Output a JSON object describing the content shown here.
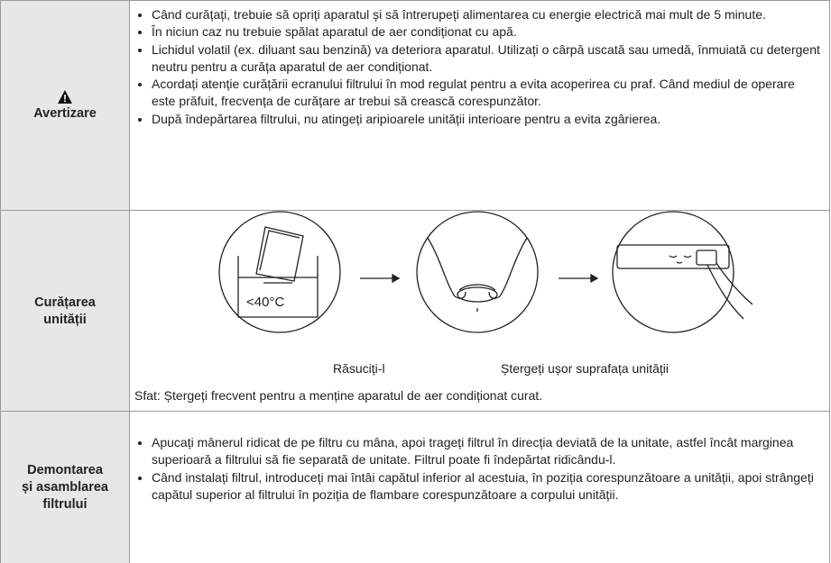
{
  "rows": [
    {
      "header": "Avertizare",
      "bullets": [
        "Când curățați, trebuie să opriți aparatul și să întrerupeți alimentarea cu energie electrică mai mult de 5 minute.",
        "În niciun caz nu trebuie spălat aparatul de aer condiționat cu apă.",
        "Lichidul volatil (ex. diluant sau benzină) va deteriora aparatul. Utilizați o cârpă uscată sau umedă, înmuiată cu detergent neutru pentru a curăța aparatul de aer condiționat.",
        "Acordați atenție curățării ecranului filtrului în mod regulat pentru a evita acoperirea cu praf. Când mediul de operare este prăfuit, frecvența de curățare ar trebui să crească corespunzător.",
        "După îndepărtarea filtrului, nu atingeți aripioarele unității interioare pentru a evita zgârierea."
      ]
    },
    {
      "header": "Curățarea unității",
      "illustration_text": "<40°C",
      "captions": [
        "Răsuciți-l",
        "Ștergeți ușor suprafața unității"
      ],
      "tip": "Sfat: Ștergeți frecvent pentru a menține aparatul de aer condiționat curat."
    },
    {
      "header": "Demontarea și asamblarea filtrului",
      "bullets": [
        "Apucați mânerul ridicat de pe filtru cu mâna, apoi trageți filtrul în direcția deviată de la unitate, astfel încât marginea superioară a filtrului să fie separată de unitate. Filtrul poate fi îndepărtat ridicându-l.",
        "Când instalați filtrul, introduceți mai întâi capătul inferior al acestuia, în poziția corespunzătoare a unității, apoi strângeți capătul superior al filtrului în poziția de flambare corespunzătoare a corpului unității."
      ]
    }
  ]
}
